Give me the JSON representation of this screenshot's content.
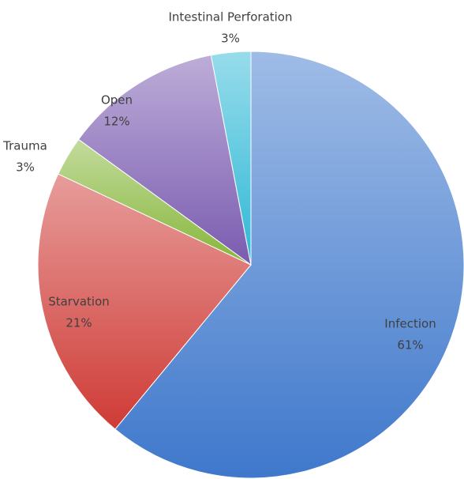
{
  "chart_data": {
    "type": "pie",
    "categories": [
      "Infection",
      "Starvation",
      "Trauma",
      "Open",
      "Intestinal Perforation"
    ],
    "values": [
      61,
      21,
      3,
      12,
      3
    ],
    "value_labels": [
      "61%",
      "21%",
      "3%",
      "12%",
      "3%"
    ],
    "colors": [
      "#3f78cc",
      "#cf3b36",
      "#86b63a",
      "#7a5bb0",
      "#2fb8d6"
    ]
  }
}
